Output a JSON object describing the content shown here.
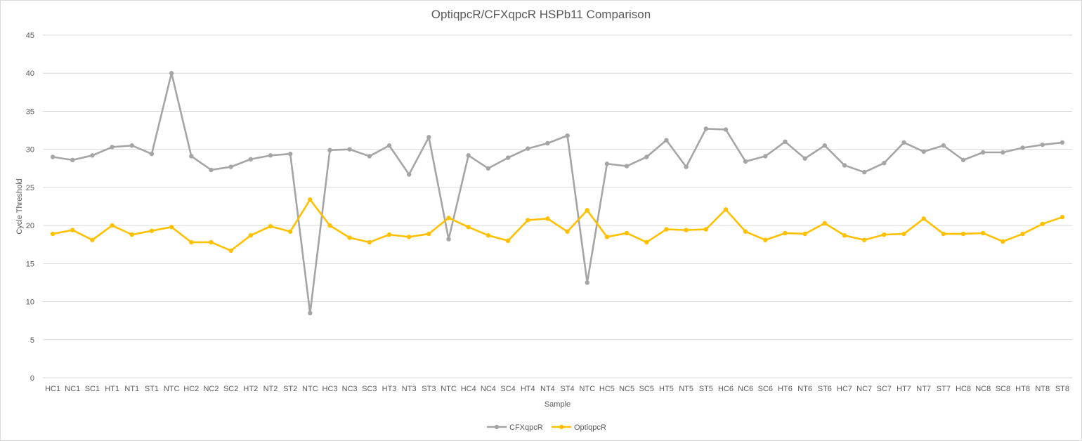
{
  "chart_data": {
    "type": "line",
    "title": "OptiqpcR/CFXqpcR HSPb11 Comparison",
    "xlabel": "Sample",
    "ylabel": "Cycle Threshold",
    "ylim": [
      0,
      45
    ],
    "yticks": [
      0,
      5,
      10,
      15,
      20,
      25,
      30,
      35,
      40,
      45
    ],
    "grid": true,
    "legend_position": "bottom",
    "categories": [
      "HC1",
      "NC1",
      "SC1",
      "HT1",
      "NT1",
      "ST1",
      "NTC",
      "HC2",
      "NC2",
      "SC2",
      "HT2",
      "NT2",
      "ST2",
      "NTC",
      "HC3",
      "NC3",
      "SC3",
      "HT3",
      "NT3",
      "ST3",
      "NTC",
      "HC4",
      "NC4",
      "SC4",
      "HT4",
      "NT4",
      "ST4",
      "NTC",
      "HC5",
      "NC5",
      "SC5",
      "HT5",
      "NT5",
      "ST5",
      "HC6",
      "NC6",
      "SC6",
      "HT6",
      "NT6",
      "ST6",
      "HC7",
      "NC7",
      "SC7",
      "HT7",
      "NT7",
      "ST7",
      "HC8",
      "NC8",
      "SC8",
      "HT8",
      "NT8",
      "ST8"
    ],
    "series": [
      {
        "name": "CFXqpcR",
        "color": "#a5a5a5",
        "values": [
          29.0,
          28.6,
          29.2,
          30.3,
          30.5,
          29.4,
          40.0,
          29.1,
          27.3,
          27.7,
          28.7,
          29.2,
          29.4,
          8.5,
          29.9,
          30.0,
          29.1,
          30.5,
          26.7,
          31.6,
          18.2,
          29.2,
          27.5,
          28.9,
          30.1,
          30.8,
          31.8,
          12.5,
          28.1,
          27.8,
          29.0,
          31.2,
          27.7,
          32.7,
          32.6,
          28.4,
          29.1,
          31.0,
          28.8,
          30.5,
          27.9,
          27.0,
          28.2,
          30.9,
          29.7,
          30.5,
          28.6,
          29.6,
          29.6,
          30.2,
          30.6,
          30.9
        ]
      },
      {
        "name": "OptiqpcR",
        "color": "#ffc000",
        "values": [
          18.9,
          19.4,
          18.1,
          20.0,
          18.8,
          19.3,
          19.8,
          17.8,
          17.8,
          16.7,
          18.7,
          19.9,
          19.2,
          23.4,
          20.0,
          18.4,
          17.8,
          18.8,
          18.5,
          18.9,
          21.0,
          19.8,
          18.7,
          18.0,
          20.7,
          20.9,
          19.2,
          22.0,
          18.5,
          19.0,
          17.8,
          19.5,
          19.4,
          19.5,
          22.1,
          19.2,
          18.1,
          19.0,
          18.9,
          20.3,
          18.7,
          18.1,
          18.8,
          18.9,
          20.9,
          18.9,
          18.9,
          19.0,
          17.9,
          18.9,
          20.2,
          21.1
        ]
      }
    ]
  }
}
